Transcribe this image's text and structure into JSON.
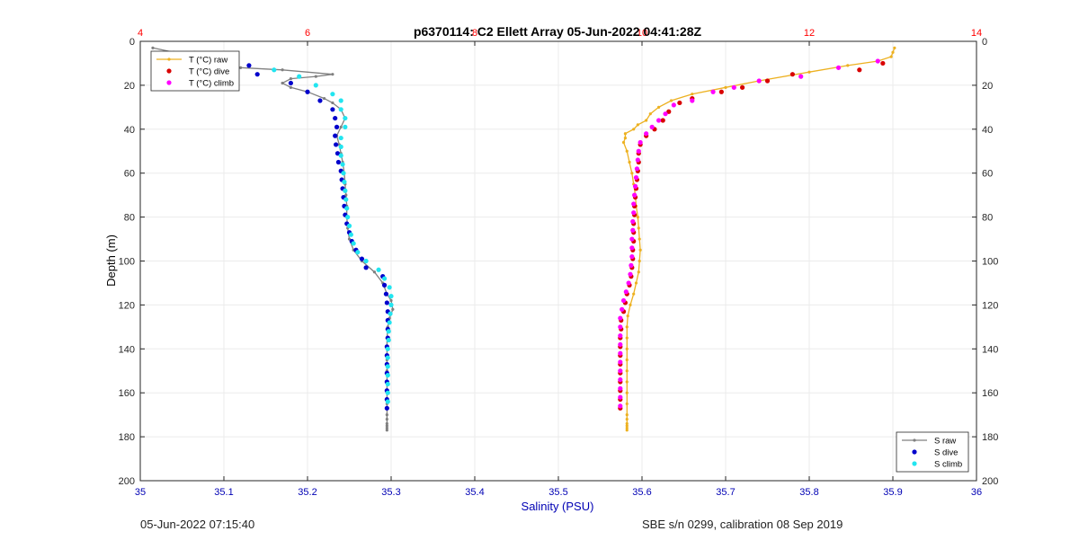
{
  "footer": {
    "left": "05-Jun-2022 07:15:40",
    "right": "SBE s/n 0299, calibration 08 Sep 2019"
  },
  "colors": {
    "temperature_axis": "#ff0000",
    "salinity_axis": "#0000b4",
    "T_raw": "#edb120",
    "T_dive": "#d90000",
    "T_climb": "#ff00ff",
    "S_raw": "#808080",
    "S_dive": "#0000cc",
    "S_climb": "#22e5f0"
  },
  "chart_data": {
    "type": "scatter",
    "title": "p6370114: C2 Ellett Array 05-Jun-2022 04:41:28Z",
    "xlabel": "Salinity (PSU)",
    "ylabel": "Depth (m)",
    "xlim": [
      35,
      36
    ],
    "x_ticks": [
      "35",
      "35.1",
      "35.2",
      "35.3",
      "35.4",
      "35.5",
      "35.6",
      "35.7",
      "35.8",
      "35.9",
      "36"
    ],
    "x2lim": [
      4,
      14
    ],
    "x2_ticks": [
      "4",
      "6",
      "8",
      "10",
      "12",
      "14"
    ],
    "x2_axis_position": "top",
    "ylim": [
      0,
      200
    ],
    "y_reversed": true,
    "y_ticks": [
      "0",
      "20",
      "40",
      "60",
      "80",
      "100",
      "120",
      "140",
      "160",
      "180",
      "200"
    ],
    "grid": true,
    "legends": [
      {
        "placement": "top-left",
        "entries": [
          "T (°C) raw",
          "T (°C) dive",
          "T (°C) climb"
        ]
      },
      {
        "placement": "bottom-right",
        "entries": [
          "S raw",
          "S dive",
          "S climb"
        ]
      }
    ],
    "series": [
      {
        "name": "T (°C) raw",
        "axis": "temperature",
        "style": "line-markers",
        "points": [
          [
            13.02,
            3
          ],
          [
            13.0,
            5
          ],
          [
            12.98,
            7
          ],
          [
            12.82,
            9
          ],
          [
            12.46,
            11
          ],
          [
            12.0,
            14
          ],
          [
            11.4,
            18
          ],
          [
            11.0,
            21
          ],
          [
            10.6,
            24
          ],
          [
            10.35,
            27
          ],
          [
            10.2,
            30
          ],
          [
            10.1,
            33
          ],
          [
            10.05,
            36
          ],
          [
            9.95,
            38
          ],
          [
            9.9,
            40
          ],
          [
            9.8,
            42
          ],
          [
            9.8,
            44
          ],
          [
            9.78,
            46
          ],
          [
            9.82,
            50
          ],
          [
            9.85,
            55
          ],
          [
            9.88,
            60
          ],
          [
            9.9,
            65
          ],
          [
            9.92,
            70
          ],
          [
            9.93,
            75
          ],
          [
            9.95,
            80
          ],
          [
            9.96,
            85
          ],
          [
            9.97,
            90
          ],
          [
            9.98,
            95
          ],
          [
            9.97,
            100
          ],
          [
            9.96,
            105
          ],
          [
            9.93,
            110
          ],
          [
            9.9,
            115
          ],
          [
            9.86,
            120
          ],
          [
            9.83,
            125
          ],
          [
            9.82,
            130
          ],
          [
            9.82,
            135
          ],
          [
            9.82,
            140
          ],
          [
            9.82,
            145
          ],
          [
            9.82,
            150
          ],
          [
            9.82,
            155
          ],
          [
            9.82,
            160
          ],
          [
            9.82,
            165
          ],
          [
            9.82,
            170
          ],
          [
            9.82,
            172
          ],
          [
            9.82,
            174
          ],
          [
            9.82,
            175
          ],
          [
            9.82,
            176
          ],
          [
            9.82,
            177
          ]
        ]
      },
      {
        "name": "T (°C) dive",
        "axis": "temperature",
        "style": "markers",
        "points": [
          [
            12.88,
            10
          ],
          [
            12.6,
            13
          ],
          [
            11.8,
            15
          ],
          [
            11.5,
            18
          ],
          [
            11.2,
            21
          ],
          [
            10.95,
            23
          ],
          [
            10.6,
            26
          ],
          [
            10.45,
            28
          ],
          [
            10.32,
            32
          ],
          [
            10.25,
            36
          ],
          [
            10.15,
            40
          ],
          [
            10.05,
            43
          ],
          [
            9.98,
            47
          ],
          [
            9.96,
            51
          ],
          [
            9.96,
            55
          ],
          [
            9.95,
            59
          ],
          [
            9.94,
            63
          ],
          [
            9.93,
            67
          ],
          [
            9.92,
            71
          ],
          [
            9.91,
            75
          ],
          [
            9.91,
            79
          ],
          [
            9.9,
            83
          ],
          [
            9.9,
            87
          ],
          [
            9.9,
            91
          ],
          [
            9.89,
            95
          ],
          [
            9.89,
            99
          ],
          [
            9.88,
            103
          ],
          [
            9.87,
            107
          ],
          [
            9.85,
            111
          ],
          [
            9.82,
            115
          ],
          [
            9.8,
            119
          ],
          [
            9.78,
            123
          ],
          [
            9.75,
            127
          ],
          [
            9.75,
            131
          ],
          [
            9.74,
            135
          ],
          [
            9.74,
            139
          ],
          [
            9.74,
            143
          ],
          [
            9.74,
            147
          ],
          [
            9.74,
            151
          ],
          [
            9.74,
            155
          ],
          [
            9.74,
            159
          ],
          [
            9.74,
            163
          ],
          [
            9.74,
            167
          ]
        ]
      },
      {
        "name": "T (°C) climb",
        "axis": "temperature",
        "style": "markers",
        "points": [
          [
            12.82,
            9
          ],
          [
            12.35,
            12
          ],
          [
            11.9,
            16
          ],
          [
            11.4,
            18
          ],
          [
            11.1,
            21
          ],
          [
            10.85,
            23
          ],
          [
            10.6,
            27
          ],
          [
            10.38,
            29
          ],
          [
            10.28,
            33
          ],
          [
            10.2,
            36
          ],
          [
            10.12,
            39
          ],
          [
            10.05,
            42
          ],
          [
            9.98,
            46
          ],
          [
            9.96,
            50
          ],
          [
            9.95,
            54
          ],
          [
            9.94,
            58
          ],
          [
            9.93,
            62
          ],
          [
            9.92,
            66
          ],
          [
            9.91,
            70
          ],
          [
            9.9,
            74
          ],
          [
            9.9,
            78
          ],
          [
            9.89,
            82
          ],
          [
            9.89,
            86
          ],
          [
            9.88,
            90
          ],
          [
            9.88,
            94
          ],
          [
            9.88,
            98
          ],
          [
            9.87,
            102
          ],
          [
            9.86,
            106
          ],
          [
            9.84,
            110
          ],
          [
            9.81,
            114
          ],
          [
            9.78,
            118
          ],
          [
            9.76,
            122
          ],
          [
            9.74,
            126
          ],
          [
            9.74,
            130
          ],
          [
            9.74,
            134
          ],
          [
            9.74,
            138
          ],
          [
            9.74,
            142
          ],
          [
            9.74,
            146
          ],
          [
            9.74,
            150
          ],
          [
            9.74,
            154
          ],
          [
            9.74,
            158
          ],
          [
            9.74,
            162
          ],
          [
            9.74,
            166
          ]
        ]
      },
      {
        "name": "S raw",
        "axis": "salinity",
        "style": "line-markers",
        "points": [
          [
            35.015,
            3
          ],
          [
            35.04,
            5
          ],
          [
            35.065,
            5
          ],
          [
            35.1,
            8
          ],
          [
            35.04,
            8
          ],
          [
            35.02,
            9
          ],
          [
            35.06,
            10
          ],
          [
            35.12,
            12
          ],
          [
            35.17,
            13
          ],
          [
            35.23,
            15
          ],
          [
            35.21,
            16
          ],
          [
            35.18,
            17
          ],
          [
            35.17,
            19
          ],
          [
            35.18,
            21
          ],
          [
            35.2,
            23
          ],
          [
            35.22,
            26
          ],
          [
            35.23,
            28
          ],
          [
            35.24,
            31
          ],
          [
            35.245,
            35
          ],
          [
            35.24,
            39
          ],
          [
            35.235,
            43
          ],
          [
            35.238,
            47
          ],
          [
            35.24,
            51
          ],
          [
            35.242,
            55
          ],
          [
            35.244,
            60
          ],
          [
            35.245,
            65
          ],
          [
            35.246,
            70
          ],
          [
            35.247,
            75
          ],
          [
            35.247,
            80
          ],
          [
            35.248,
            85
          ],
          [
            35.25,
            90
          ],
          [
            35.255,
            95
          ],
          [
            35.265,
            100
          ],
          [
            35.28,
            105
          ],
          [
            35.29,
            110
          ],
          [
            35.295,
            115
          ],
          [
            35.3,
            118
          ],
          [
            35.302,
            122
          ],
          [
            35.298,
            126
          ],
          [
            35.296,
            130
          ],
          [
            35.295,
            135
          ],
          [
            35.295,
            140
          ],
          [
            35.295,
            145
          ],
          [
            35.295,
            150
          ],
          [
            35.295,
            155
          ],
          [
            35.295,
            160
          ],
          [
            35.295,
            165
          ],
          [
            35.295,
            170
          ],
          [
            35.295,
            172
          ],
          [
            35.295,
            174
          ],
          [
            35.295,
            175
          ],
          [
            35.295,
            176
          ],
          [
            35.295,
            177
          ]
        ]
      },
      {
        "name": "S dive",
        "axis": "salinity",
        "style": "markers",
        "points": [
          [
            35.13,
            11
          ],
          [
            35.14,
            15
          ],
          [
            35.18,
            19
          ],
          [
            35.2,
            23
          ],
          [
            35.215,
            27
          ],
          [
            35.23,
            31
          ],
          [
            35.233,
            35
          ],
          [
            35.235,
            39
          ],
          [
            35.233,
            43
          ],
          [
            35.234,
            47
          ],
          [
            35.236,
            51
          ],
          [
            35.237,
            55
          ],
          [
            35.24,
            59
          ],
          [
            35.241,
            63
          ],
          [
            35.242,
            67
          ],
          [
            35.243,
            71
          ],
          [
            35.244,
            75
          ],
          [
            35.245,
            79
          ],
          [
            35.247,
            83
          ],
          [
            35.25,
            87
          ],
          [
            35.253,
            91
          ],
          [
            35.258,
            95
          ],
          [
            35.265,
            99
          ],
          [
            35.27,
            103
          ],
          [
            35.29,
            107
          ],
          [
            35.292,
            111
          ],
          [
            35.294,
            115
          ],
          [
            35.295,
            119
          ],
          [
            35.296,
            123
          ],
          [
            35.296,
            127
          ],
          [
            35.296,
            131
          ],
          [
            35.296,
            135
          ],
          [
            35.295,
            139
          ],
          [
            35.295,
            143
          ],
          [
            35.295,
            147
          ],
          [
            35.295,
            151
          ],
          [
            35.295,
            155
          ],
          [
            35.295,
            159
          ],
          [
            35.295,
            163
          ],
          [
            35.295,
            167
          ]
        ]
      },
      {
        "name": "S climb",
        "axis": "salinity",
        "style": "markers",
        "points": [
          [
            35.1,
            9
          ],
          [
            35.16,
            13
          ],
          [
            35.19,
            16
          ],
          [
            35.21,
            20
          ],
          [
            35.23,
            24
          ],
          [
            35.24,
            27
          ],
          [
            35.24,
            31
          ],
          [
            35.245,
            35
          ],
          [
            35.245,
            39
          ],
          [
            35.24,
            44
          ],
          [
            35.24,
            48
          ],
          [
            35.24,
            52
          ],
          [
            35.242,
            56
          ],
          [
            35.243,
            60
          ],
          [
            35.244,
            64
          ],
          [
            35.245,
            68
          ],
          [
            35.246,
            72
          ],
          [
            35.247,
            76
          ],
          [
            35.248,
            80
          ],
          [
            35.25,
            84
          ],
          [
            35.252,
            88
          ],
          [
            35.255,
            92
          ],
          [
            35.26,
            96
          ],
          [
            35.27,
            100
          ],
          [
            35.285,
            104
          ],
          [
            35.292,
            108
          ],
          [
            35.298,
            112
          ],
          [
            35.3,
            116
          ],
          [
            35.3,
            120
          ],
          [
            35.299,
            124
          ],
          [
            35.298,
            128
          ],
          [
            35.297,
            132
          ],
          [
            35.297,
            136
          ],
          [
            35.296,
            140
          ],
          [
            35.296,
            144
          ],
          [
            35.296,
            148
          ],
          [
            35.296,
            152
          ],
          [
            35.296,
            156
          ],
          [
            35.296,
            160
          ],
          [
            35.296,
            164
          ]
        ]
      }
    ]
  }
}
